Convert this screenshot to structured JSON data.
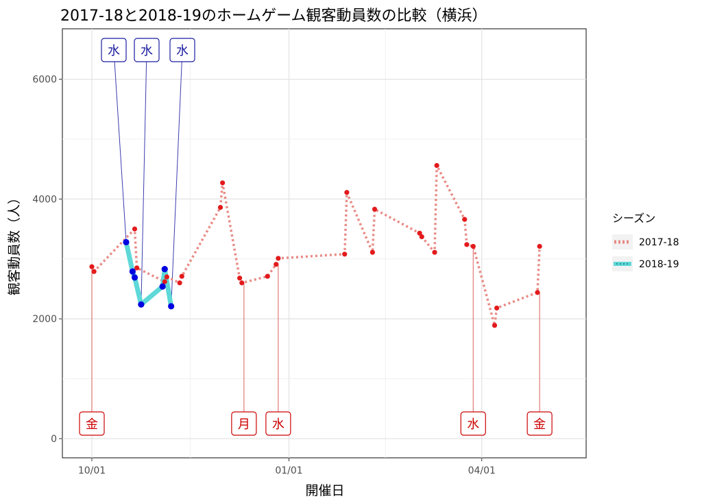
{
  "chart_data": {
    "type": "line",
    "title": "2017-18と2018-19のホームゲーム観客動員数の比較（横浜）",
    "xlabel": "開催日",
    "ylabel": "観客動員数（人）",
    "x_ticks": [
      "10/01",
      "01/01",
      "04/01"
    ],
    "y_ticks": [
      "0",
      "2000",
      "4000",
      "6000"
    ],
    "ylim": [
      -300,
      6800
    ],
    "legend": {
      "title": "シーズン",
      "position": "right"
    },
    "series": [
      {
        "name": "2017-18",
        "color": "#e88a84",
        "point_color": "#e31a1c",
        "style": "dotted",
        "points": [
          {
            "x": "10/01",
            "y": 2870
          },
          {
            "x": "10/02",
            "y": 2790
          },
          {
            "x": "10/21",
            "y": 3500
          },
          {
            "x": "10/22",
            "y": 2850
          },
          {
            "x": "11/04",
            "y": 2620
          },
          {
            "x": "11/05",
            "y": 2700
          },
          {
            "x": "11/11",
            "y": 2600
          },
          {
            "x": "11/12",
            "y": 2710
          },
          {
            "x": "11/30",
            "y": 3860
          },
          {
            "x": "12/01",
            "y": 4270
          },
          {
            "x": "12/09",
            "y": 2680
          },
          {
            "x": "12/10",
            "y": 2600
          },
          {
            "x": "12/22",
            "y": 2710
          },
          {
            "x": "12/26",
            "y": 2910
          },
          {
            "x": "12/27",
            "y": 3010
          },
          {
            "x": "01/27",
            "y": 3080
          },
          {
            "x": "01/28",
            "y": 4110
          },
          {
            "x": "02/09",
            "y": 3110
          },
          {
            "x": "02/10",
            "y": 3830
          },
          {
            "x": "03/03",
            "y": 3430
          },
          {
            "x": "03/04",
            "y": 3370
          },
          {
            "x": "03/10",
            "y": 3110
          },
          {
            "x": "03/11",
            "y": 4560
          },
          {
            "x": "03/24",
            "y": 3660
          },
          {
            "x": "03/25",
            "y": 3240
          },
          {
            "x": "03/28",
            "y": 3210
          },
          {
            "x": "04/07",
            "y": 1890
          },
          {
            "x": "04/08",
            "y": 2180
          },
          {
            "x": "04/27",
            "y": 2440
          },
          {
            "x": "04/28",
            "y": 3210
          }
        ]
      },
      {
        "name": "2018-19",
        "color": "#5ed8d8",
        "point_color": "#0000e0",
        "style": "solid",
        "points": [
          {
            "x": "10/17",
            "y": 3280
          },
          {
            "x": "10/20",
            "y": 2790
          },
          {
            "x": "10/21",
            "y": 2690
          },
          {
            "x": "10/24",
            "y": 2240
          },
          {
            "x": "11/03",
            "y": 2540
          },
          {
            "x": "11/04",
            "y": 2830
          },
          {
            "x": "11/07",
            "y": 2210
          }
        ]
      }
    ],
    "annotations": [
      {
        "label": "金",
        "x": "10/01",
        "y": 2870,
        "color": "#cc0000",
        "pos": "bottom"
      },
      {
        "label": "月",
        "x": "12/11",
        "y": 2600,
        "color": "#cc0000",
        "pos": "bottom"
      },
      {
        "label": "水",
        "x": "12/27",
        "y": 2910,
        "color": "#cc0000",
        "pos": "bottom"
      },
      {
        "label": "水",
        "x": "03/28",
        "y": 3210,
        "color": "#cc0000",
        "pos": "bottom"
      },
      {
        "label": "金",
        "x": "04/28",
        "y": 2440,
        "color": "#cc0000",
        "pos": "bottom"
      },
      {
        "label": "水",
        "x": "10/17",
        "y": 3280,
        "color": "#1a1aa0",
        "pos": "top"
      },
      {
        "label": "水",
        "x": "10/24",
        "y": 2240,
        "color": "#1a1aa0",
        "pos": "top"
      },
      {
        "label": "水",
        "x": "11/07",
        "y": 2210,
        "color": "#1a1aa0",
        "pos": "top"
      }
    ]
  }
}
